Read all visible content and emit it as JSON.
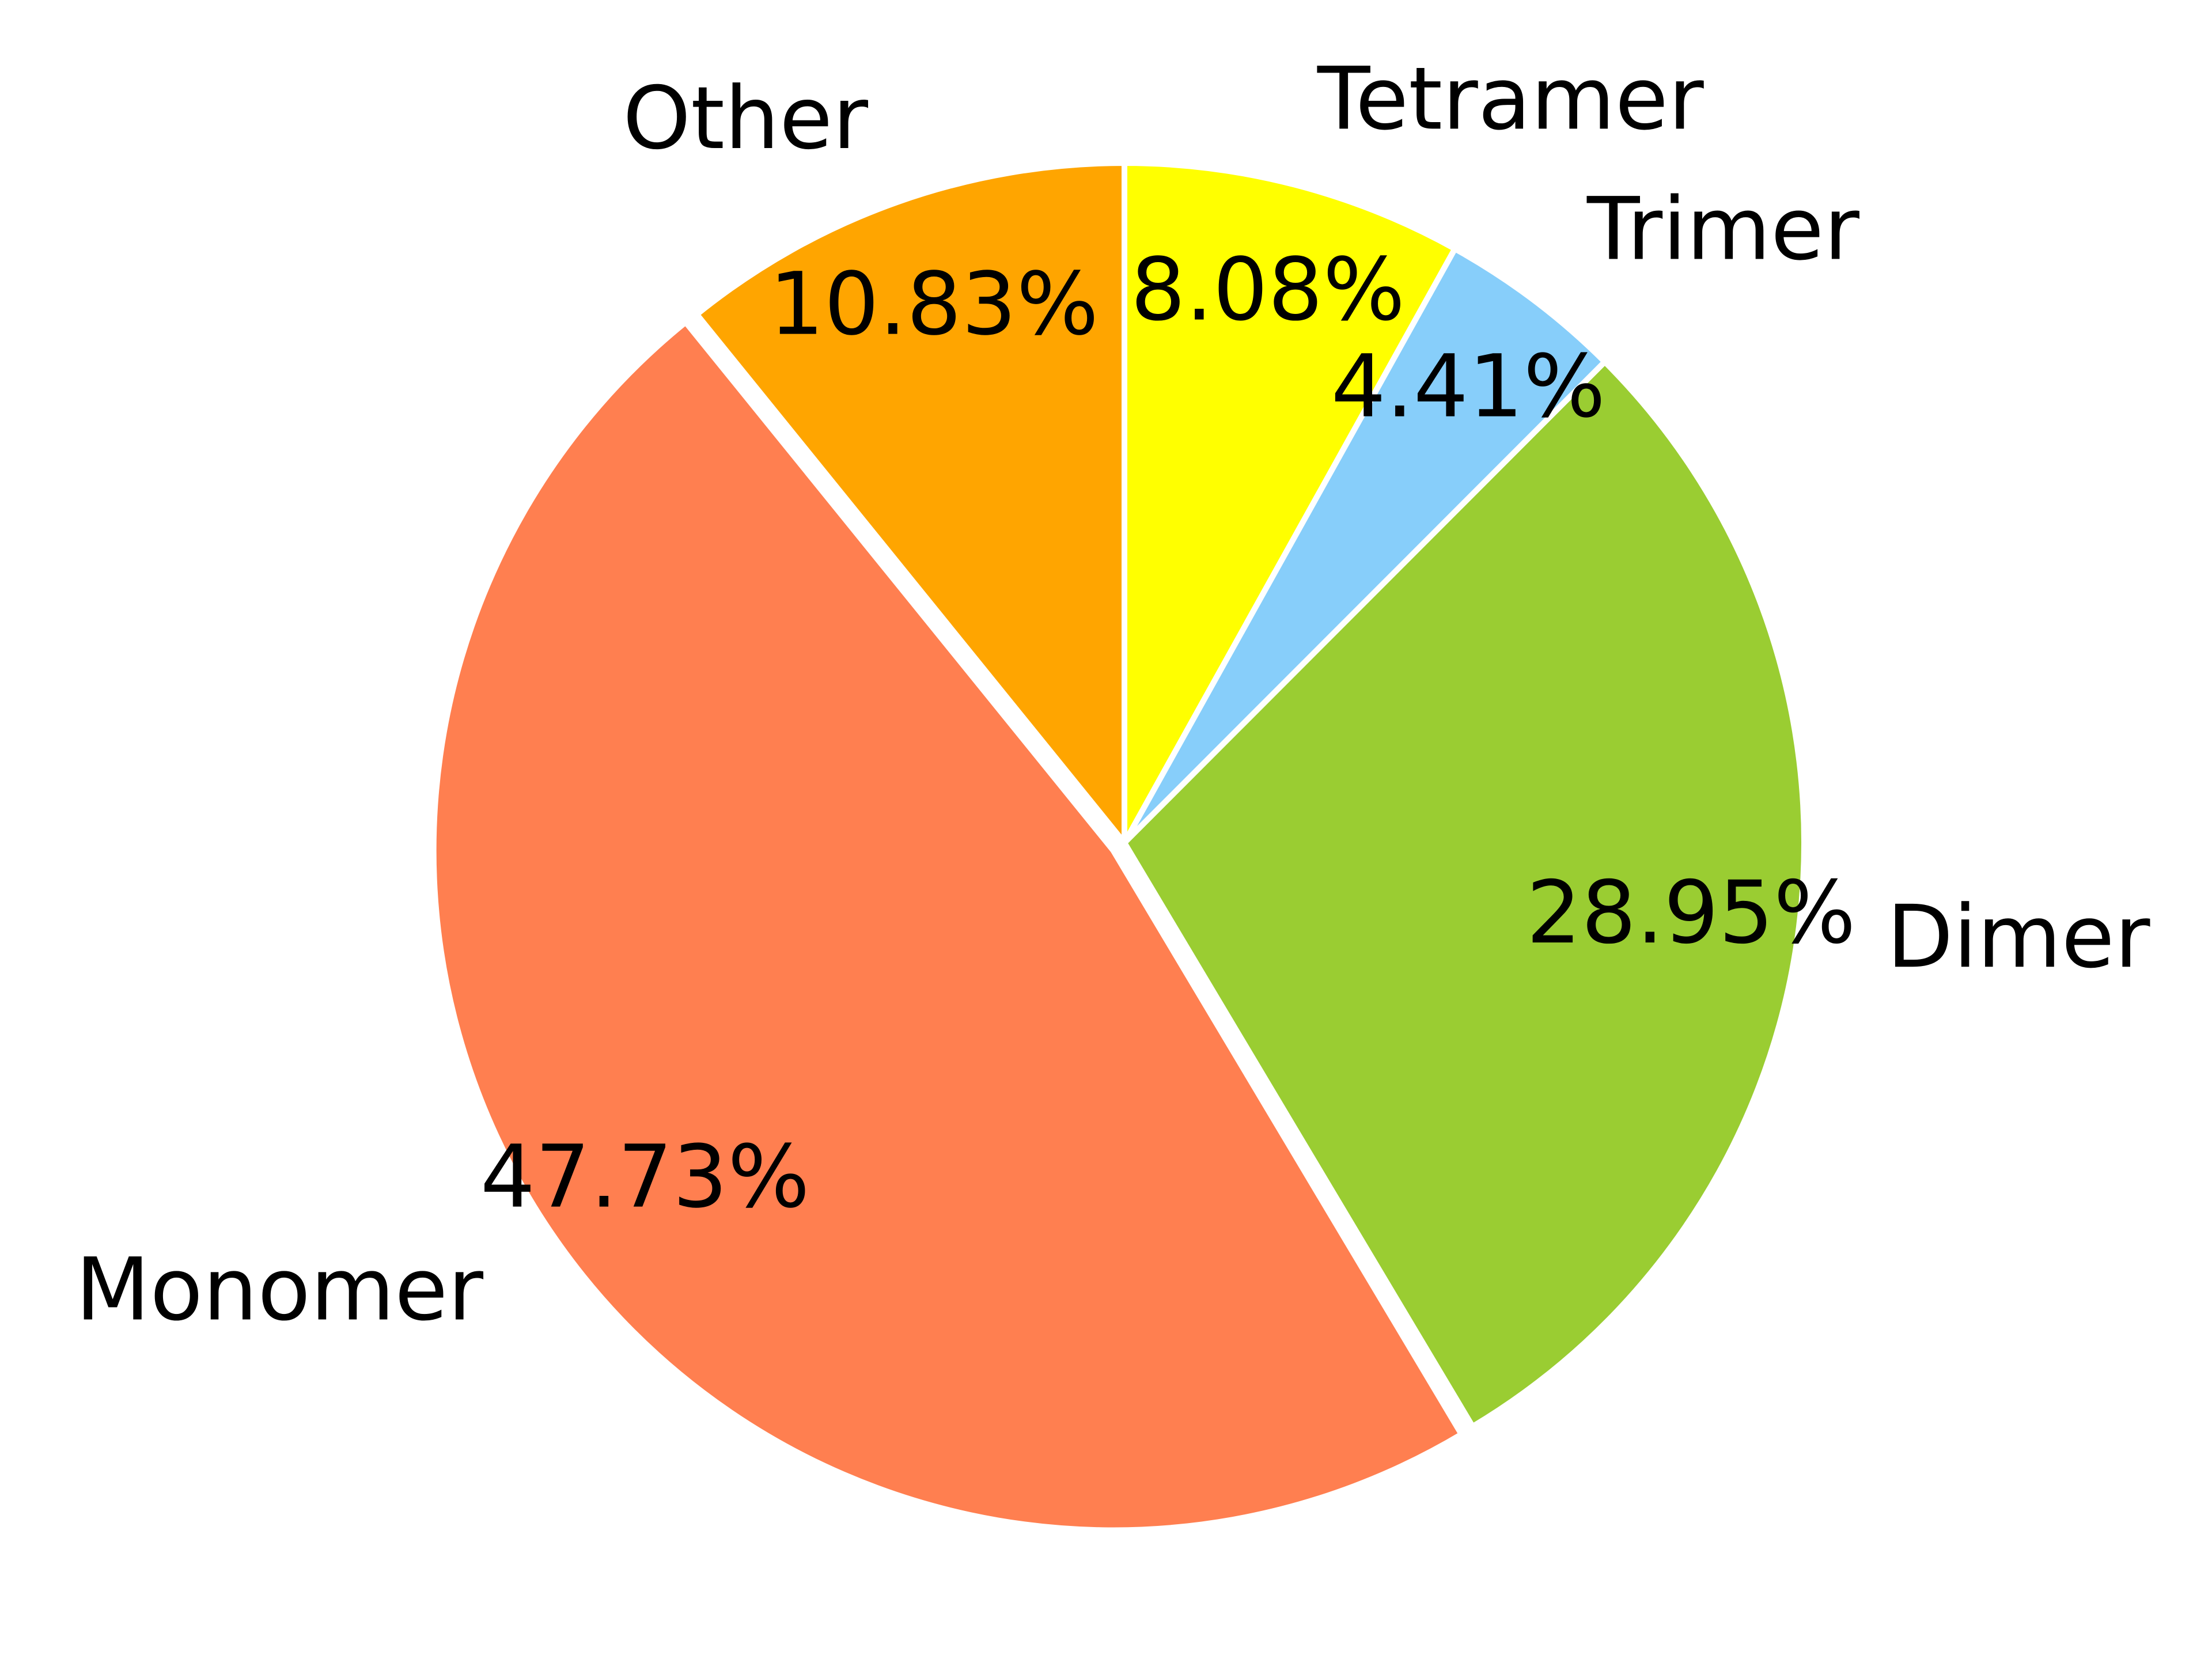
{
  "chart_data": {
    "type": "pie",
    "title": "",
    "start_angle_deg": 90,
    "direction": "counterclockwise",
    "slices": [
      {
        "label": "Other",
        "value": 10.83,
        "pct_label": "10.83%",
        "color": "#FFA500"
      },
      {
        "label": "Monomer",
        "value": 47.73,
        "pct_label": "47.73%",
        "color": "#FF7F50",
        "explode": true
      },
      {
        "label": "Dimer",
        "value": 28.95,
        "pct_label": "28.95%",
        "color": "#9ACD32"
      },
      {
        "label": "Trimer",
        "value": 4.41,
        "pct_label": "4.41%",
        "color": "#87CEFA"
      },
      {
        "label": "Tetramer",
        "value": 8.08,
        "pct_label": "8.08%",
        "color": "#FFFF00"
      }
    ]
  }
}
